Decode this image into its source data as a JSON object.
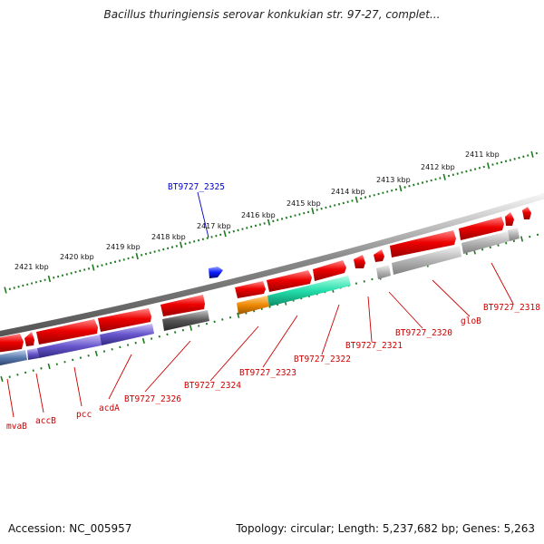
{
  "title": "Bacillus thuringiensis serovar konkukian str. 97-27, complet...",
  "footer": {
    "accession": "Accession: NC_005957",
    "info": "Topology: circular; Length: 5,237,682 bp; Genes: 5,263"
  },
  "colors": {
    "backbone": "#888888",
    "ticks": "#1e7a1e",
    "gene_red": "#ee0000",
    "gene_blue": "#0a1aff",
    "label_red": "#cc0000",
    "label_blue": "#0000cc",
    "cog_blue": "#5577aa",
    "cog_purple": "#6655cc",
    "cog_darkgray": "#555555",
    "cog_orange": "#ee8800",
    "cog_green": "#22ddaa",
    "cog_lightgray": "#aaaaaa"
  },
  "scale_labels": [
    "2421 kbp",
    "2420 kbp",
    "2419 kbp",
    "2418 kbp",
    "2417 kbp",
    "2416 kbp",
    "2415 kbp",
    "2414 kbp",
    "2413 kbp",
    "2412 kbp",
    "2411 kbp"
  ],
  "gene_labels": [
    {
      "text": "mvaB",
      "strand": "reverse"
    },
    {
      "text": "accB",
      "strand": "reverse"
    },
    {
      "text": "pcc",
      "strand": "reverse"
    },
    {
      "text": "acdA",
      "strand": "reverse"
    },
    {
      "text": "BT9727_2326",
      "strand": "reverse"
    },
    {
      "text": "BT9727_2325",
      "strand": "forward"
    },
    {
      "text": "BT9727_2324",
      "strand": "reverse"
    },
    {
      "text": "BT9727_2323",
      "strand": "reverse"
    },
    {
      "text": "BT9727_2322",
      "strand": "reverse"
    },
    {
      "text": "BT9727_2321",
      "strand": "reverse"
    },
    {
      "text": "BT9727_2320",
      "strand": "reverse"
    },
    {
      "text": "gloB",
      "strand": "reverse"
    },
    {
      "text": "BT9727_2318",
      "strand": "reverse"
    }
  ]
}
